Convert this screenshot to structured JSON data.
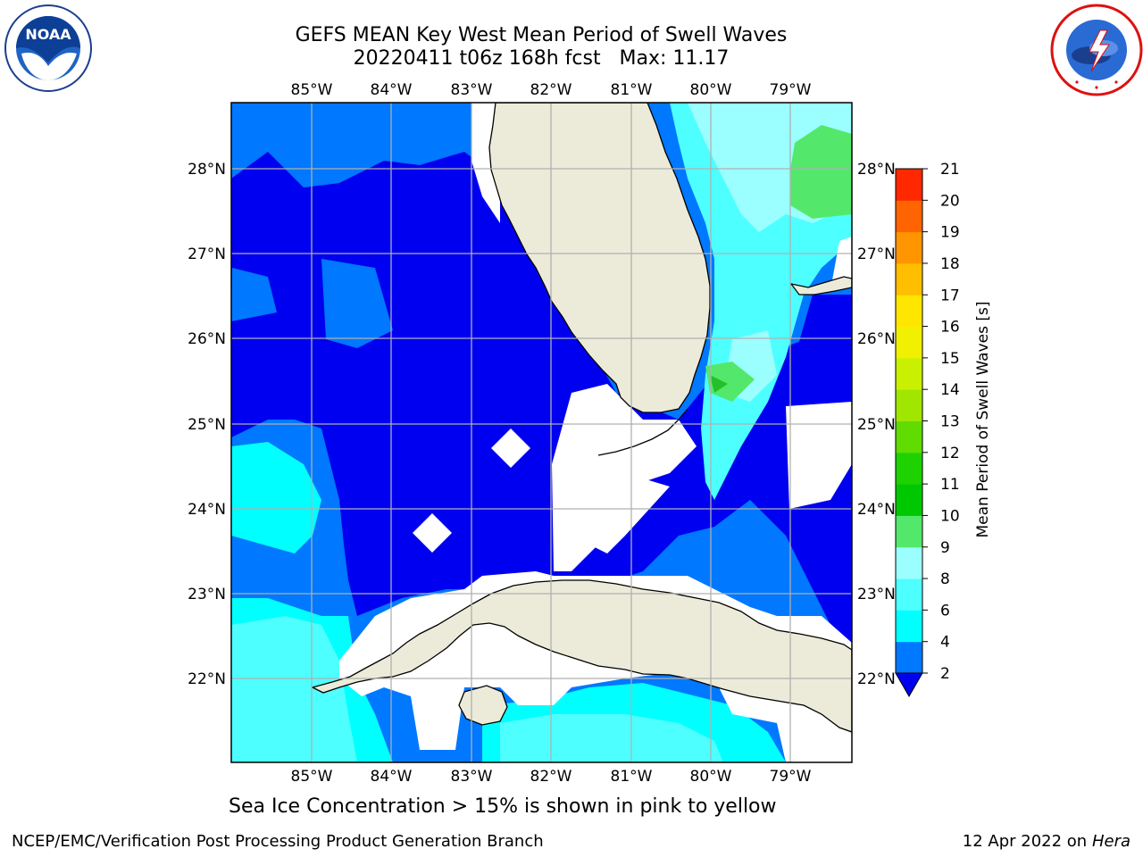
{
  "title_line1": "GEFS MEAN Key West Mean Period of Swell Waves",
  "title_line2": "20220411 t06z 168h fcst   Max: 11.17",
  "subtitle": "Sea Ice Concentration > 15% is shown in pink to yellow",
  "footer_left": "NCEP/EMC/Verification Post Processing Product Generation Branch",
  "footer_right_date": "12 Apr 2022 on",
  "footer_right_host": "Hera",
  "logos": {
    "left": {
      "name": "noaa-logo",
      "text": "NOAA",
      "ring_text": "NATIONAL OCEANIC AND ATMOSPHERIC ADMINISTRATION · U.S. DEPARTMENT OF COMMERCE"
    },
    "right": {
      "name": "nws-logo",
      "ring_text": "NATIONAL WEATHER SERVICE"
    }
  },
  "map": {
    "lon_ticks": [
      "85°W",
      "84°W",
      "83°W",
      "82°W",
      "81°W",
      "80°W",
      "79°W"
    ],
    "lat_ticks": [
      "28°N",
      "27°N",
      "26°N",
      "25°N",
      "24°N",
      "23°N",
      "22°N"
    ],
    "colors": {
      "land": "#ecebd9",
      "c2_4": "#0000f0",
      "c4_6": "#0078ff",
      "c6_8": "#00ffff",
      "c8_9": "#4effff",
      "c9_10": "#9bffff",
      "green_light": "#53e86b",
      "green": "#22c12a",
      "grid": "#b0b0b0"
    }
  },
  "colorbar": {
    "label": "Mean Period of Swell Waves [s]",
    "ticks": [
      "2",
      "4",
      "6",
      "8",
      "9",
      "10",
      "11",
      "12",
      "13",
      "14",
      "15",
      "16",
      "17",
      "18",
      "19",
      "20",
      "21"
    ],
    "colors": [
      "#0078ff",
      "#00ffff",
      "#4effff",
      "#9bffff",
      "#53e86b",
      "#00c800",
      "#1ed200",
      "#60dc00",
      "#a0e600",
      "#c8f000",
      "#f0f000",
      "#ffe600",
      "#ffbe00",
      "#ff9600",
      "#ff6400",
      "#ff2800"
    ],
    "under_color": "#0000f0"
  }
}
